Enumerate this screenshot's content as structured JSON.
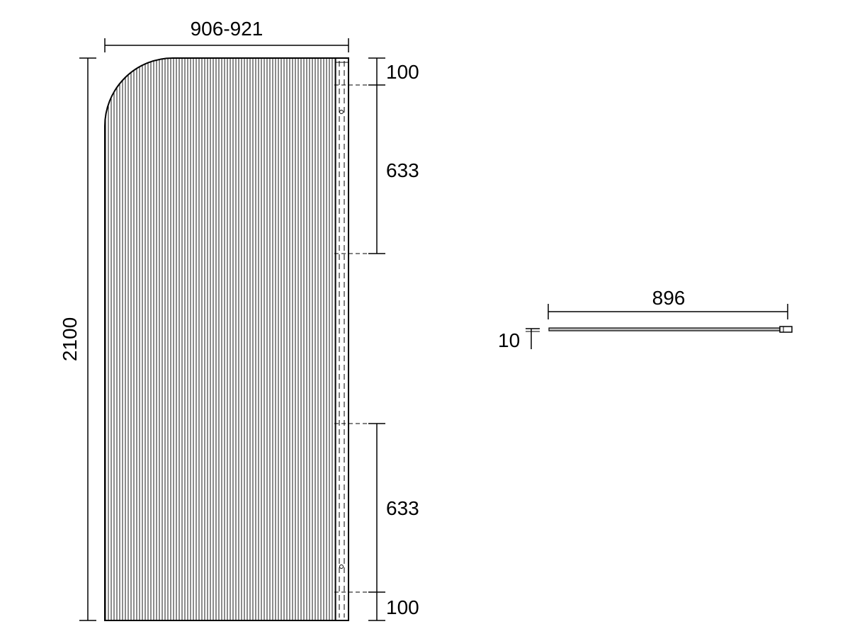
{
  "front_view": {
    "width_label": "906-921",
    "height_label": "2100",
    "right_dims": [
      "100",
      "633",
      "633",
      "100"
    ]
  },
  "top_view": {
    "width_label": "896",
    "thickness_label": "10"
  },
  "colors": {
    "line": "#000000",
    "background": "#ffffff"
  }
}
